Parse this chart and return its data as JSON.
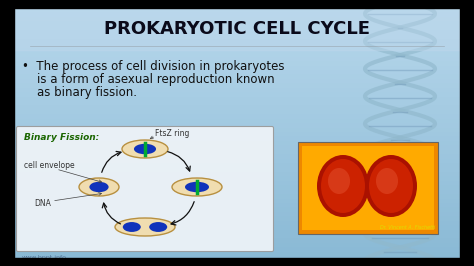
{
  "title": "PROKARYOTIC CELL CYCLE",
  "title_fontsize": 13,
  "title_color": "#0a0a1a",
  "bg_color": "#a8cfe0",
  "bullet_text_line1": "•  The process of cell division in prokaryotes",
  "bullet_text_line2": "    is a form of asexual reproduction known",
  "bullet_text_line3": "    as binary fission.",
  "bullet_fontsize": 8.5,
  "bullet_color": "#111111",
  "binary_fission_label": "Binary Fission:",
  "binary_fission_color": "#1a6600",
  "ftsz_label": "FtsZ ring",
  "cell_envelope_label": "cell envelope",
  "dna_label": "DNA",
  "watermark": "www.bppt.info",
  "cell_body_color": "#f0ddb0",
  "cell_outline_color": "#b89040",
  "nucleus_color": "#1133bb",
  "green_bar_color": "#00aa33",
  "arrow_color": "#111111",
  "diagram_bg": "#f0f4f8",
  "diagram_border": "#999999",
  "label_fontsize": 5.5,
  "dna_helix_color": "#90b8cc",
  "micro_border": "#888888",
  "micro_caption": "Dr. Vincent A. Fischetti"
}
